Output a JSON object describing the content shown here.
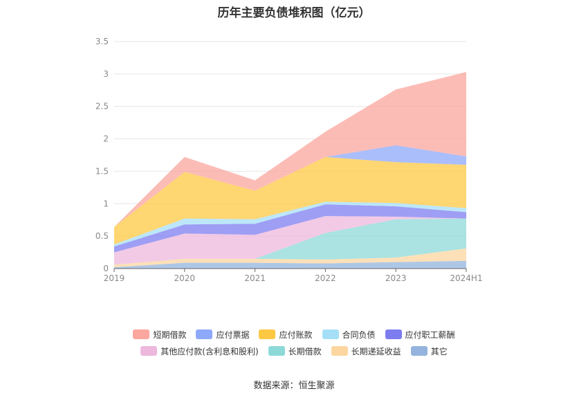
{
  "chart_data": {
    "type": "area",
    "title": "历年主要负债堆积图（亿元）",
    "categories": [
      "2019",
      "2020",
      "2021",
      "2022",
      "2023",
      "2024H1"
    ],
    "ylim": [
      0,
      3.5
    ],
    "yticks": [
      "0",
      "0.5",
      "1",
      "1.5",
      "2",
      "2.5",
      "3",
      "3.5"
    ],
    "grid": true,
    "legend_position": "bottom",
    "series": [
      {
        "name": "其它",
        "color": "#94b4dd",
        "values": [
          0.02,
          0.09,
          0.09,
          0.08,
          0.1,
          0.12
        ]
      },
      {
        "name": "长期递延收益",
        "color": "#fcd6a0",
        "values": [
          0.04,
          0.06,
          0.06,
          0.06,
          0.07,
          0.19
        ]
      },
      {
        "name": "长期借款",
        "color": "#8dd9d8",
        "values": [
          0.0,
          0.0,
          0.0,
          0.41,
          0.59,
          0.46
        ]
      },
      {
        "name": "其他应付款(含利息和股利)",
        "color": "#edb8dd",
        "values": [
          0.19,
          0.39,
          0.37,
          0.26,
          0.04,
          0.0
        ]
      },
      {
        "name": "应付职工薪酬",
        "color": "#7d7df0",
        "values": [
          0.09,
          0.14,
          0.17,
          0.18,
          0.16,
          0.1
        ]
      },
      {
        "name": "合同负债",
        "color": "#a5dff7",
        "values": [
          0.03,
          0.09,
          0.07,
          0.04,
          0.05,
          0.06
        ]
      },
      {
        "name": "应付账款",
        "color": "#fdc843",
        "values": [
          0.27,
          0.72,
          0.44,
          0.69,
          0.63,
          0.67
        ]
      },
      {
        "name": "应付票据",
        "color": "#8ea8fa",
        "values": [
          0.0,
          0.0,
          0.0,
          0.0,
          0.26,
          0.13
        ]
      },
      {
        "name": "短期借款",
        "color": "#fba69e",
        "values": [
          0.0,
          0.23,
          0.16,
          0.39,
          0.86,
          1.3
        ]
      }
    ]
  },
  "legend_rows": [
    [
      "短期借款",
      "应付票据",
      "应付账款",
      "合同负债",
      "应付职工薪酬"
    ],
    [
      "其他应付款(含利息和股利)",
      "长期借款",
      "长期递延收益",
      "其它"
    ]
  ],
  "footer": {
    "source": "数据来源：恒生聚源"
  }
}
